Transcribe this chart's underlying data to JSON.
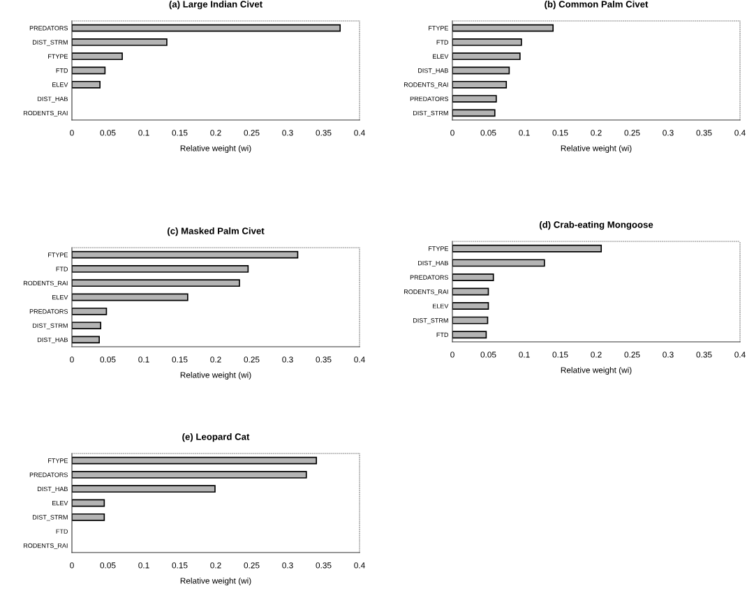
{
  "chart_data": [
    {
      "type": "bar",
      "orientation": "horizontal",
      "title": "(a) Large Indian Civet",
      "xlabel": "Relative weight (wi)",
      "categories": [
        "PREDATORS",
        "DIST_STRM",
        "FTYPE",
        "FTD",
        "ELEV",
        "DIST_HAB",
        "RODENTS_RAI"
      ],
      "values": [
        0.373,
        0.132,
        0.07,
        0.046,
        0.039,
        0,
        0
      ],
      "color": "#b4b4b4",
      "xlim": [
        0,
        0.4
      ],
      "xticks": [
        0,
        0.05,
        0.1,
        0.15,
        0.2,
        0.25,
        0.3,
        0.35,
        0.4
      ],
      "grid": false
    },
    {
      "type": "bar",
      "orientation": "horizontal",
      "title": "(b) Common Palm Civet",
      "xlabel": "Relative weight (wi)",
      "categories": [
        "FTYPE",
        "FTD",
        "ELEV",
        "DIST_HAB",
        "RODENTS_RAI",
        "PREDATORS",
        "DIST_STRM"
      ],
      "values": [
        0.14,
        0.096,
        0.094,
        0.079,
        0.075,
        0.061,
        0.059
      ],
      "color": "#b4b4b4",
      "xlim": [
        0,
        0.4
      ],
      "xticks": [
        0,
        0.05,
        0.1,
        0.15,
        0.2,
        0.25,
        0.3,
        0.35,
        0.4
      ],
      "grid": false
    },
    {
      "type": "bar",
      "orientation": "horizontal",
      "title": "(c) Masked Palm Civet",
      "xlabel": "Relative weight (wi)",
      "categories": [
        "FTYPE",
        "FTD",
        "RODENTS_RAI",
        "ELEV",
        "PREDATORS",
        "DIST_STRM",
        "DIST_HAB"
      ],
      "values": [
        0.314,
        0.245,
        0.233,
        0.161,
        0.048,
        0.04,
        0.038
      ],
      "color": "#b4b4b4",
      "xlim": [
        0,
        0.4
      ],
      "xticks": [
        0,
        0.05,
        0.1,
        0.15,
        0.2,
        0.25,
        0.3,
        0.35,
        0.4
      ],
      "grid": false
    },
    {
      "type": "bar",
      "orientation": "horizontal",
      "title": "(d) Crab-eating Mongoose",
      "xlabel": "Relative weight (wi)",
      "categories": [
        "FTYPE",
        "DIST_HAB",
        "PREDATORS",
        "RODENTS_RAI",
        "ELEV",
        "DIST_STRM",
        "FTD"
      ],
      "values": [
        0.207,
        0.128,
        0.057,
        0.05,
        0.05,
        0.049,
        0.047
      ],
      "color": "#b4b4b4",
      "xlim": [
        0,
        0.4
      ],
      "xticks": [
        0,
        0.05,
        0.1,
        0.15,
        0.2,
        0.25,
        0.3,
        0.35,
        0.4
      ],
      "grid": false
    },
    {
      "type": "bar",
      "orientation": "horizontal",
      "title": "(e) Leopard Cat",
      "xlabel": "Relative weight (wi)",
      "categories": [
        "FTYPE",
        "PREDATORS",
        "DIST_HAB",
        "ELEV",
        "DIST_STRM",
        "FTD",
        "RODENTS_RAI"
      ],
      "values": [
        0.34,
        0.326,
        0.199,
        0.045,
        0.045,
        0,
        0
      ],
      "color": "#b4b4b4",
      "xlim": [
        0,
        0.4
      ],
      "xticks": [
        0,
        0.05,
        0.1,
        0.15,
        0.2,
        0.25,
        0.3,
        0.35,
        0.4
      ],
      "grid": false
    }
  ]
}
